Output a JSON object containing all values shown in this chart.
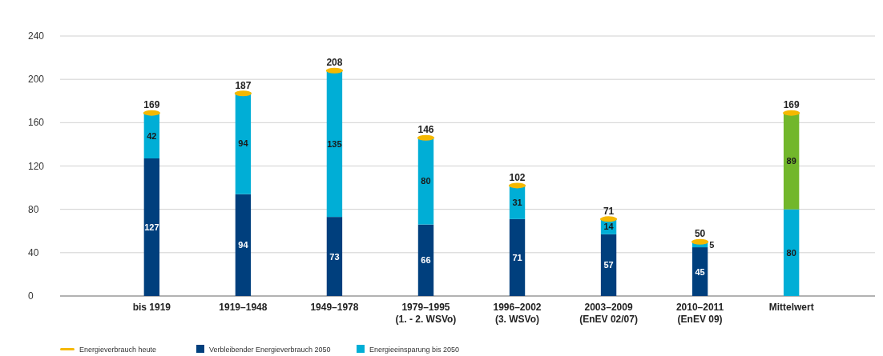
{
  "chart_data": {
    "type": "bar",
    "stacked": true,
    "categories": [
      "bis 1919",
      "1919–1948",
      "1949–1978",
      "1979–1995\n(1. - 2. WSVo)",
      "1996–2002\n(3. WSVo)",
      "2003–2009\n(EnEV 02/07)",
      "2010–2011\n(EnEV 09)",
      "Mittelwert"
    ],
    "series": [
      {
        "name": "Verbleibender Energieverbrauch 2050",
        "color": "#003f7d",
        "colors": [
          "#003f7d",
          "#003f7d",
          "#003f7d",
          "#003f7d",
          "#003f7d",
          "#003f7d",
          "#003f7d",
          "#00aed6"
        ],
        "values": [
          127,
          94,
          73,
          66,
          71,
          57,
          45,
          80
        ]
      },
      {
        "name": "Energieeinsparung bis 2050",
        "color": "#00aed6",
        "colors": [
          "#00aed6",
          "#00aed6",
          "#00aed6",
          "#00aed6",
          "#00aed6",
          "#00aed6",
          "#00aed6",
          "#72b72b"
        ],
        "values": [
          42,
          94,
          135,
          80,
          31,
          14,
          5,
          89
        ]
      },
      {
        "name": "Energieverbrauch heute",
        "type": "scatter",
        "color": "#f5b800",
        "values": [
          169,
          187,
          208,
          146,
          102,
          71,
          50,
          169
        ],
        "value_labels": [
          "169",
          "187",
          "208",
          "146",
          "102",
          "71",
          "50",
          "169"
        ]
      }
    ],
    "data_labels": true,
    "ylim": [
      0,
      240
    ],
    "yticks": [
      0,
      40,
      80,
      120,
      160,
      200,
      240
    ],
    "grid": "y",
    "legend": "bottom left"
  }
}
